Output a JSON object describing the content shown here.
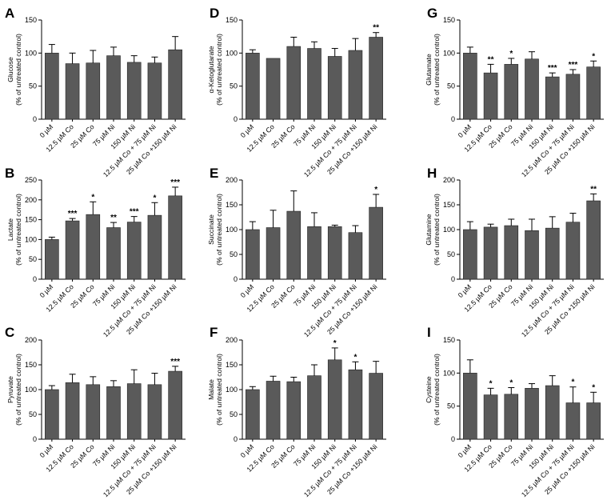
{
  "colors": {
    "bar": "#5a5a5a",
    "axis": "#000000"
  },
  "chart_data": [
    {
      "panel": "A",
      "type": "bar",
      "ylabel": "Glucose",
      "ylabel2": "(% of untreated control)",
      "categories": [
        "0 µM",
        "12.5 µM Co",
        "25 µM Co",
        "75 µM Ni",
        "150 µM Ni",
        "12.5 µM Co + 75 µM Ni",
        "25 µM Co +150 µM Ni"
      ],
      "values": [
        100,
        84,
        85,
        96,
        86,
        85,
        105
      ],
      "errors": [
        13,
        16,
        19,
        13,
        10,
        9,
        20
      ],
      "significance": [
        "",
        "",
        "",
        "",
        "",
        "",
        ""
      ],
      "ylim": [
        0,
        150
      ],
      "yticks": [
        0,
        50,
        100,
        150
      ]
    },
    {
      "panel": "B",
      "type": "bar",
      "ylabel": "Lactate",
      "ylabel2": "(% of untreated control)",
      "categories": [
        "0 µM",
        "12.5 µM Co",
        "25 µM Co",
        "75 µM Ni",
        "150 µM Ni",
        "12.5 µM Co + 75 µM Ni",
        "25 µM Co +150 µM Ni"
      ],
      "values": [
        100,
        147,
        163,
        130,
        144,
        161,
        210
      ],
      "errors": [
        6,
        6,
        32,
        13,
        14,
        32,
        22
      ],
      "significance": [
        "",
        "***",
        "*",
        "**",
        "***",
        "*",
        "***"
      ],
      "ylim": [
        0,
        250
      ],
      "yticks": [
        0,
        50,
        100,
        150,
        200,
        250
      ]
    },
    {
      "panel": "C",
      "type": "bar",
      "ylabel": "Pyruvate",
      "ylabel2": "(% of untreated control)",
      "categories": [
        "0 µM",
        "12.5 µM Co",
        "25 µM Co",
        "75 µM Ni",
        "150 µM Ni",
        "12.5 µM Co + 75 µM Ni",
        "25 µM Co +150 µM Ni"
      ],
      "values": [
        100,
        114,
        110,
        106,
        112,
        110,
        137
      ],
      "errors": [
        8,
        17,
        16,
        12,
        28,
        23,
        10
      ],
      "significance": [
        "",
        "",
        "",
        "",
        "",
        "",
        "***"
      ],
      "ylim": [
        0,
        200
      ],
      "yticks": [
        0,
        50,
        100,
        150,
        200
      ]
    },
    {
      "panel": "D",
      "type": "bar",
      "ylabel": "α-Ketoglutarate",
      "ylabel2": "(% of untreated control)",
      "categories": [
        "0 µM",
        "12.5 µM Co",
        "25 µM Co",
        "75 µM Ni",
        "150 µM Ni",
        "12.5 µM Co + 75 µM Ni",
        "25 µM Co +150 µM Ni"
      ],
      "values": [
        100,
        92,
        110,
        107,
        95,
        104,
        124
      ],
      "errors": [
        5,
        0,
        14,
        10,
        12,
        18,
        7
      ],
      "significance": [
        "",
        "",
        "",
        "",
        "",
        "",
        "**"
      ],
      "ylim": [
        0,
        150
      ],
      "yticks": [
        0,
        50,
        100,
        150
      ]
    },
    {
      "panel": "E",
      "type": "bar",
      "ylabel": "Succinate",
      "ylabel2": "(% of untreated control)",
      "categories": [
        "0 µM",
        "12.5 µM Co",
        "25 µM Co",
        "75 µM Ni",
        "150 µM Ni",
        "12.5 µM Co + 75 µM Ni",
        "25 µM Co +150 µM Ni"
      ],
      "values": [
        100,
        104,
        137,
        106,
        106,
        94,
        145
      ],
      "errors": [
        16,
        35,
        41,
        28,
        3,
        14,
        26
      ],
      "significance": [
        "",
        "",
        "",
        "",
        "",
        "",
        "*"
      ],
      "ylim": [
        0,
        200
      ],
      "yticks": [
        0,
        50,
        100,
        150,
        200
      ]
    },
    {
      "panel": "F",
      "type": "bar",
      "ylabel": "Malate",
      "ylabel2": "(% of untreated control)",
      "categories": [
        "0 µM",
        "12.5 µM Co",
        "25 µM Co",
        "75 µM Ni",
        "150 µM Ni",
        "12.5 µM Co + 75 µM Ni",
        "25 µM Co +150 µM Ni"
      ],
      "values": [
        100,
        117,
        116,
        128,
        160,
        140,
        133
      ],
      "errors": [
        6,
        10,
        9,
        22,
        24,
        16,
        24
      ],
      "significance": [
        "",
        "",
        "",
        "",
        "*",
        "*",
        ""
      ],
      "ylim": [
        0,
        200
      ],
      "yticks": [
        0,
        50,
        100,
        150,
        200
      ]
    },
    {
      "panel": "G",
      "type": "bar",
      "ylabel": "Glutamate",
      "ylabel2": "(% of untreated control)",
      "categories": [
        "0 µM",
        "12.5 µM Co",
        "25 µM Co",
        "75 µM Ni",
        "150 µM Ni",
        "12.5 µM Co + 75 µM Ni",
        "25 µM Co +150 µM Ni"
      ],
      "values": [
        100,
        70,
        83,
        91,
        64,
        68,
        79
      ],
      "errors": [
        9,
        13,
        9,
        11,
        6,
        7,
        9
      ],
      "significance": [
        "",
        "**",
        "*",
        "",
        "***",
        "***",
        "*"
      ],
      "ylim": [
        0,
        150
      ],
      "yticks": [
        0,
        50,
        100,
        150
      ]
    },
    {
      "panel": "H",
      "type": "bar",
      "ylabel": "Glutamine",
      "ylabel2": "(% of untreated control)",
      "categories": [
        "0 µM",
        "12.5 µM Co",
        "25 µM Co",
        "75 µM Ni",
        "150 µM Ni",
        "12.5 µM Co + 75 µM Ni",
        "25 µM Co +150 µM Ni"
      ],
      "values": [
        100,
        105,
        108,
        98,
        103,
        115,
        158
      ],
      "errors": [
        16,
        6,
        13,
        23,
        23,
        18,
        14
      ],
      "significance": [
        "",
        "",
        "",
        "",
        "",
        "",
        "**"
      ],
      "ylim": [
        0,
        200
      ],
      "yticks": [
        0,
        50,
        100,
        150,
        200
      ]
    },
    {
      "panel": "I",
      "type": "bar",
      "ylabel": "Cysteine",
      "ylabel2": "(% of untreated control)",
      "categories": [
        "0 µM",
        "12.5 µM Co",
        "25 µM Co",
        "75 µM Ni",
        "150 µM Ni",
        "12.5 µM Co + 75 µM Ni",
        "25 µM Co +150 µM Ni"
      ],
      "values": [
        100,
        67,
        68,
        77,
        81,
        55,
        55
      ],
      "errors": [
        20,
        10,
        10,
        7,
        15,
        24,
        16
      ],
      "significance": [
        "",
        "*",
        "*",
        "",
        "",
        "*",
        "*"
      ],
      "ylim": [
        0,
        150
      ],
      "yticks": [
        0,
        50,
        100,
        150
      ]
    }
  ]
}
